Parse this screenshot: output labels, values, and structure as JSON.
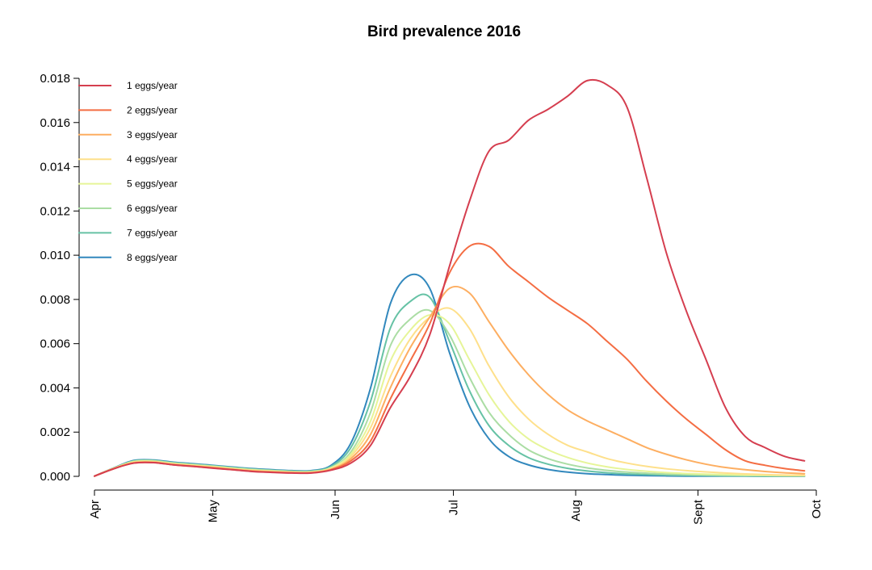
{
  "chart_data": {
    "type": "line",
    "title": "Bird prevalence 2016",
    "xlabel": "",
    "ylabel": "",
    "x_axis": {
      "range": [
        "2016-04-01",
        "2016-10-01"
      ],
      "ticks": [
        {
          "date": "2016-04-01",
          "label": "Apr"
        },
        {
          "date": "2016-05-01",
          "label": "May"
        },
        {
          "date": "2016-06-01",
          "label": "Jun"
        },
        {
          "date": "2016-07-01",
          "label": "Jul"
        },
        {
          "date": "2016-08-01",
          "label": "Aug"
        },
        {
          "date": "2016-09-01",
          "label": "Sept"
        },
        {
          "date": "2016-10-01",
          "label": "Oct"
        }
      ]
    },
    "y_axis": {
      "range": [
        0,
        0.018
      ],
      "ticks": [
        "0.000",
        "0.002",
        "0.004",
        "0.006",
        "0.008",
        "0.010",
        "0.012",
        "0.014",
        "0.016",
        "0.018"
      ]
    },
    "grid": false,
    "legend": {
      "position": "top-left"
    },
    "x": [
      "2016-04-01",
      "2016-04-06",
      "2016-04-11",
      "2016-04-16",
      "2016-04-21",
      "2016-04-26",
      "2016-05-01",
      "2016-05-06",
      "2016-05-11",
      "2016-05-16",
      "2016-05-21",
      "2016-05-26",
      "2016-05-31",
      "2016-06-05",
      "2016-06-10",
      "2016-06-15",
      "2016-06-20",
      "2016-06-25",
      "2016-06-30",
      "2016-07-05",
      "2016-07-10",
      "2016-07-15",
      "2016-07-20",
      "2016-07-25",
      "2016-07-30",
      "2016-08-04",
      "2016-08-09",
      "2016-08-14",
      "2016-08-19",
      "2016-08-24",
      "2016-08-29",
      "2016-09-03",
      "2016-09-08",
      "2016-09-13",
      "2016-09-18",
      "2016-09-23",
      "2016-09-28"
    ],
    "series": [
      {
        "name": "1 eggs/year",
        "color": "#d53e4f",
        "values": [
          1e-05,
          0.00035,
          0.0006,
          0.00062,
          0.00052,
          0.00045,
          0.00037,
          0.0003,
          0.00022,
          0.00018,
          0.00015,
          0.00015,
          0.00028,
          0.0006,
          0.0014,
          0.0031,
          0.0045,
          0.0064,
          0.0095,
          0.0124,
          0.0147,
          0.0152,
          0.0161,
          0.0166,
          0.0172,
          0.0179,
          0.0177,
          0.0167,
          0.0135,
          0.0101,
          0.0075,
          0.0053,
          0.0031,
          0.0018,
          0.0013,
          0.0009,
          0.0007
        ]
      },
      {
        "name": "2 eggs/year",
        "color": "#f46d43",
        "values": [
          1e-05,
          0.00035,
          0.0006,
          0.00062,
          0.00052,
          0.00045,
          0.00038,
          0.0003,
          0.00023,
          0.00019,
          0.00016,
          0.00016,
          0.0003,
          0.0007,
          0.0016,
          0.0035,
          0.0052,
          0.0069,
          0.0092,
          0.0104,
          0.0104,
          0.0095,
          0.0088,
          0.0081,
          0.0075,
          0.0069,
          0.0061,
          0.0053,
          0.0043,
          0.0034,
          0.0026,
          0.0019,
          0.0012,
          0.0007,
          0.0005,
          0.00035,
          0.00025
        ]
      },
      {
        "name": "3 eggs/year",
        "color": "#fdae61",
        "values": [
          1e-05,
          0.00036,
          0.00062,
          0.00064,
          0.00054,
          0.00047,
          0.0004,
          0.00032,
          0.00025,
          0.0002,
          0.00017,
          0.00017,
          0.00032,
          0.0008,
          0.0019,
          0.004,
          0.0058,
          0.0072,
          0.0085,
          0.0083,
          0.007,
          0.0057,
          0.0046,
          0.0037,
          0.003,
          0.0025,
          0.0021,
          0.0017,
          0.0013,
          0.001,
          0.00075,
          0.00055,
          0.0004,
          0.0003,
          0.00022,
          0.00016,
          0.00012
        ]
      },
      {
        "name": "4 eggs/year",
        "color": "#fee08b",
        "values": [
          1e-05,
          0.00037,
          0.00064,
          0.00066,
          0.00056,
          0.00049,
          0.00042,
          0.00034,
          0.00027,
          0.00022,
          0.00019,
          0.00018,
          0.00035,
          0.0009,
          0.0022,
          0.0045,
          0.0062,
          0.0072,
          0.0076,
          0.0067,
          0.005,
          0.0036,
          0.0026,
          0.0019,
          0.0014,
          0.0011,
          0.0008,
          0.0006,
          0.00045,
          0.00034,
          0.00026,
          0.0002,
          0.00015,
          0.00011,
          8e-05,
          6e-05,
          5e-05
        ]
      },
      {
        "name": "5 eggs/year",
        "color": "#e6f598",
        "values": [
          1e-05,
          0.00037,
          0.00066,
          0.00068,
          0.00058,
          0.00051,
          0.00044,
          0.00036,
          0.00029,
          0.00024,
          0.0002,
          0.0002,
          0.00038,
          0.001,
          0.0025,
          0.0052,
          0.0066,
          0.0073,
          0.0069,
          0.0053,
          0.0037,
          0.0025,
          0.0017,
          0.0012,
          0.00085,
          0.0006,
          0.00043,
          0.00031,
          0.00023,
          0.00017,
          0.00013,
          0.0001,
          8e-05,
          6e-05,
          5e-05,
          4e-05,
          3e-05
        ]
      },
      {
        "name": "6 eggs/year",
        "color": "#abdda4",
        "values": [
          1e-05,
          0.00038,
          0.00068,
          0.0007,
          0.0006,
          0.00053,
          0.00046,
          0.00038,
          0.00031,
          0.00026,
          0.00022,
          0.00022,
          0.0004,
          0.0011,
          0.0029,
          0.0059,
          0.0071,
          0.0075,
          0.0064,
          0.0045,
          0.0029,
          0.0019,
          0.0012,
          0.0008,
          0.00055,
          0.00038,
          0.00027,
          0.00019,
          0.00014,
          0.0001,
          8e-05,
          6e-05,
          5e-05,
          4e-05,
          3e-05,
          2e-05,
          2e-05
        ]
      },
      {
        "name": "7 eggs/year",
        "color": "#66c2a5",
        "values": [
          1e-05,
          0.00038,
          0.0007,
          0.00072,
          0.00062,
          0.00055,
          0.00048,
          0.0004,
          0.00033,
          0.00028,
          0.00024,
          0.00024,
          0.00045,
          0.0013,
          0.0034,
          0.0067,
          0.0079,
          0.0081,
          0.0061,
          0.0039,
          0.0023,
          0.0014,
          0.00085,
          0.00055,
          0.00036,
          0.00024,
          0.00016,
          0.00011,
          8e-05,
          6e-05,
          4e-05,
          3e-05,
          2e-05,
          2e-05,
          1e-05,
          1e-05,
          1e-05
        ]
      },
      {
        "name": "8 eggs/year",
        "color": "#3288bd",
        "values": [
          1e-05,
          0.00039,
          0.00072,
          0.00074,
          0.00064,
          0.00057,
          0.0005,
          0.00042,
          0.00035,
          0.0003,
          0.00026,
          0.00026,
          0.0005,
          0.0015,
          0.004,
          0.0078,
          0.0091,
          0.0085,
          0.0056,
          0.0032,
          0.0017,
          0.0009,
          0.00052,
          0.00031,
          0.00019,
          0.00012,
          8e-05,
          5e-05,
          3e-05,
          2e-05,
          1e-05,
          1e-05,
          1e-05,
          1e-05,
          0,
          0,
          0
        ]
      }
    ]
  }
}
